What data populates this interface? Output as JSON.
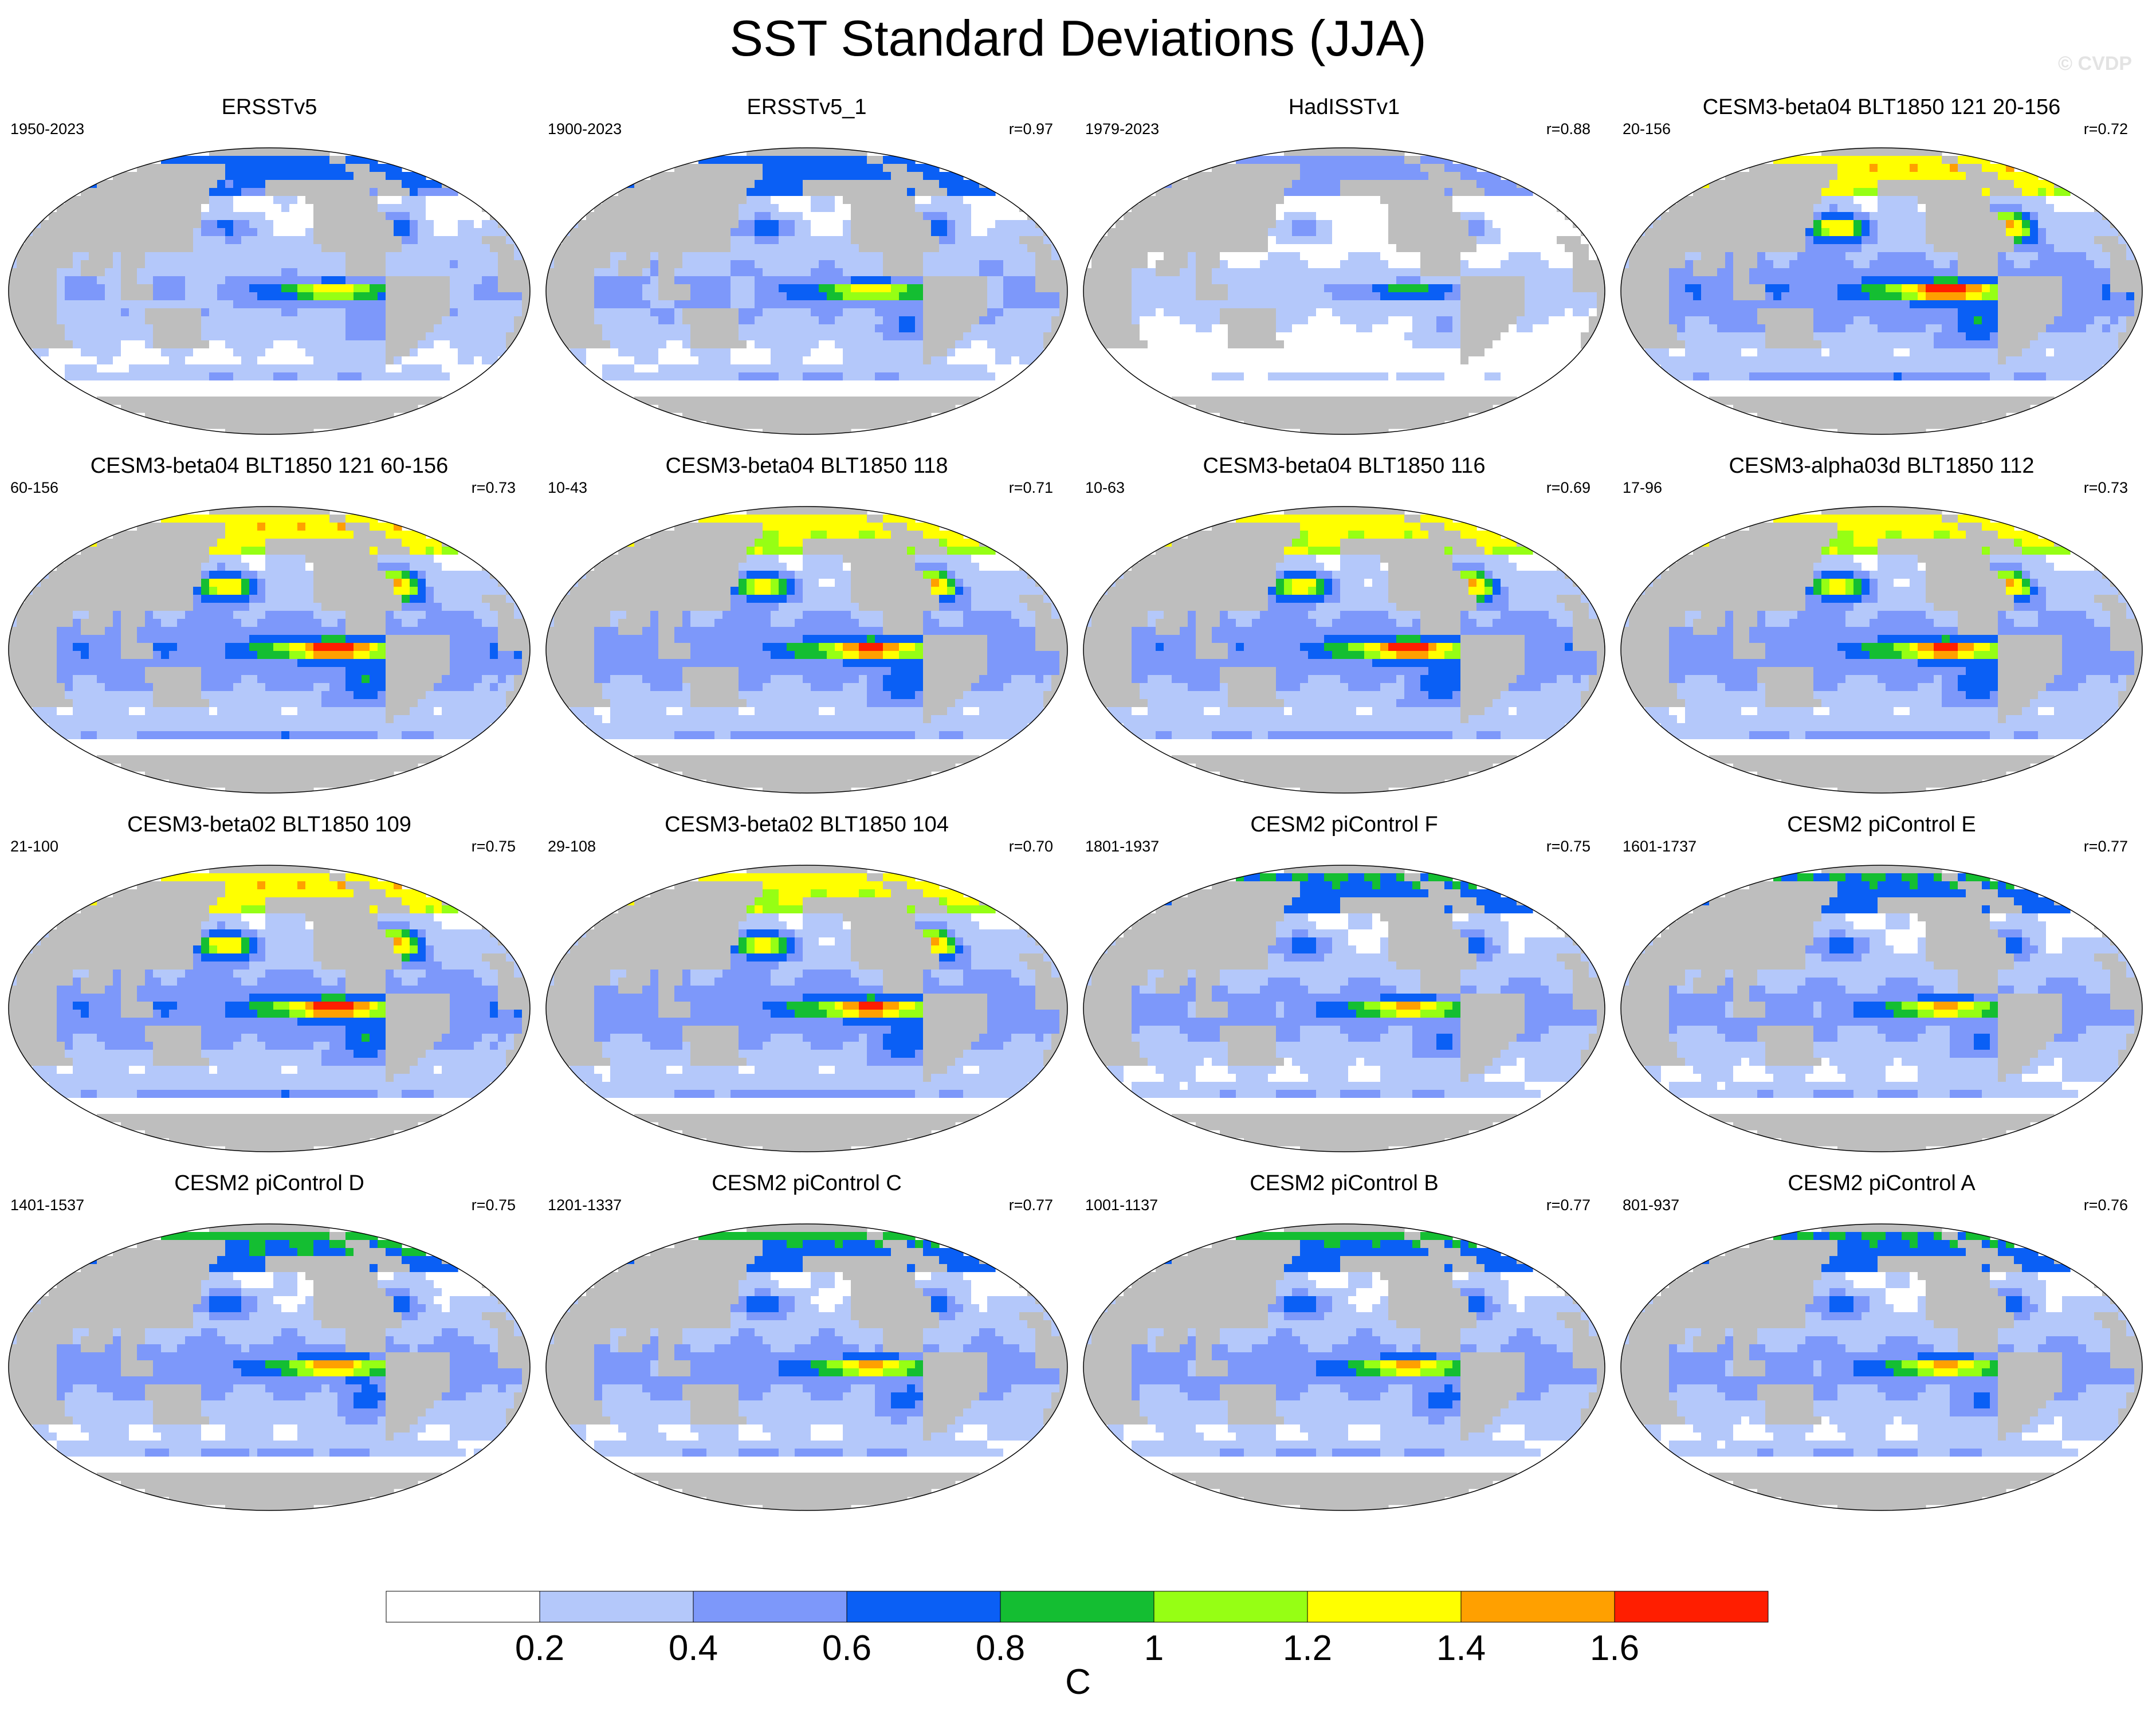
{
  "title": "SST Standard Deviations (JJA)",
  "watermark": "© CVDP",
  "panels": [
    {
      "title": "ERSSTv5",
      "years": "1950-2023",
      "r": "",
      "amp": 1.0,
      "mode": "obs"
    },
    {
      "title": "ERSSTv5_1",
      "years": "1900-2023",
      "r": "r=0.97",
      "amp": 1.05,
      "mode": "obs"
    },
    {
      "title": "HadISSTv1",
      "years": "1979-2023",
      "r": "r=0.88",
      "amp": 0.85,
      "mode": "had"
    },
    {
      "title": "CESM3-beta04 BLT1850 121 20-156",
      "years": "20-156",
      "r": "r=0.72",
      "amp": 1.35,
      "mode": "cesm3"
    },
    {
      "title": "CESM3-beta04 BLT1850 121 60-156",
      "years": "60-156",
      "r": "r=0.73",
      "amp": 1.35,
      "mode": "cesm3"
    },
    {
      "title": "CESM3-beta04 BLT1850 118",
      "years": "10-43",
      "r": "r=0.71",
      "amp": 1.3,
      "mode": "cesm3"
    },
    {
      "title": "CESM3-beta04 BLT1850 116",
      "years": "10-63",
      "r": "r=0.69",
      "amp": 1.32,
      "mode": "cesm3"
    },
    {
      "title": "CESM3-alpha03d BLT1850 112",
      "years": "17-96",
      "r": "r=0.73",
      "amp": 1.3,
      "mode": "cesm3"
    },
    {
      "title": "CESM3-beta02 BLT1850 109",
      "years": "21-100",
      "r": "r=0.75",
      "amp": 1.35,
      "mode": "cesm3"
    },
    {
      "title": "CESM3-beta02 BLT1850 104",
      "years": "29-108",
      "r": "r=0.70",
      "amp": 1.3,
      "mode": "cesm3"
    },
    {
      "title": "CESM2 piControl F",
      "years": "1801-1937",
      "r": "r=0.75",
      "amp": 1.1,
      "mode": "cesm2"
    },
    {
      "title": "CESM2 piControl E",
      "years": "1601-1737",
      "r": "r=0.77",
      "amp": 1.1,
      "mode": "cesm2"
    },
    {
      "title": "CESM2 piControl D",
      "years": "1401-1537",
      "r": "r=0.75",
      "amp": 1.15,
      "mode": "cesm2"
    },
    {
      "title": "CESM2 piControl C",
      "years": "1201-1337",
      "r": "r=0.77",
      "amp": 1.12,
      "mode": "cesm2"
    },
    {
      "title": "CESM2 piControl B",
      "years": "1001-1137",
      "r": "r=0.77",
      "amp": 1.12,
      "mode": "cesm2"
    },
    {
      "title": "CESM2 piControl A",
      "years": "801-937",
      "r": "r=0.76",
      "amp": 1.1,
      "mode": "cesm2"
    }
  ],
  "colorbar": {
    "levels": [
      0,
      0.2,
      0.4,
      0.6,
      0.8,
      1.0,
      1.2,
      1.4,
      1.6,
      1.8
    ],
    "tick_labels": [
      "0.2",
      "0.4",
      "0.6",
      "0.8",
      "1",
      "1.2",
      "1.4",
      "1.6"
    ],
    "colors": [
      "#ffffff",
      "#b4c8fa",
      "#7d98fa",
      "#0a5ff5",
      "#14be32",
      "#96ff14",
      "#ffff00",
      "#ffa000",
      "#ff1e00"
    ],
    "units": "C"
  },
  "land_color": "#bebebe"
}
